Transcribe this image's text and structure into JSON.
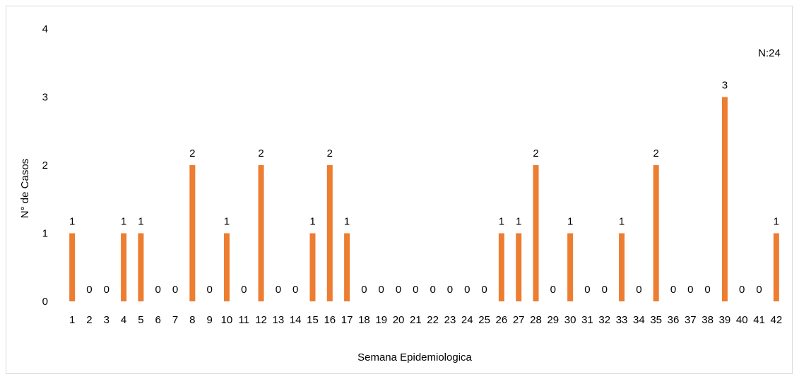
{
  "chart_data": {
    "type": "bar",
    "title": "",
    "annotation": "N:24",
    "xlabel": "Semana Epidemiologica",
    "ylabel": "N° de Casos",
    "ylim": [
      0,
      4
    ],
    "yticks": [
      0,
      1,
      2,
      3,
      4
    ],
    "grid": false,
    "legend": "none",
    "bar_color": "#ED7D31",
    "categories": [
      "1",
      "2",
      "3",
      "4",
      "5",
      "6",
      "7",
      "8",
      "9",
      "10",
      "11",
      "12",
      "13",
      "14",
      "15",
      "16",
      "17",
      "18",
      "19",
      "20",
      "21",
      "22",
      "23",
      "24",
      "25",
      "26",
      "27",
      "28",
      "29",
      "30",
      "31",
      "32",
      "33",
      "34",
      "35",
      "36",
      "37",
      "38",
      "39",
      "40",
      "41",
      "42"
    ],
    "values": [
      1,
      0,
      0,
      1,
      1,
      0,
      0,
      2,
      0,
      1,
      0,
      2,
      0,
      0,
      1,
      2,
      1,
      0,
      0,
      0,
      0,
      0,
      0,
      0,
      0,
      1,
      1,
      2,
      0,
      1,
      0,
      0,
      1,
      0,
      2,
      0,
      0,
      0,
      3,
      0,
      0,
      1
    ]
  }
}
